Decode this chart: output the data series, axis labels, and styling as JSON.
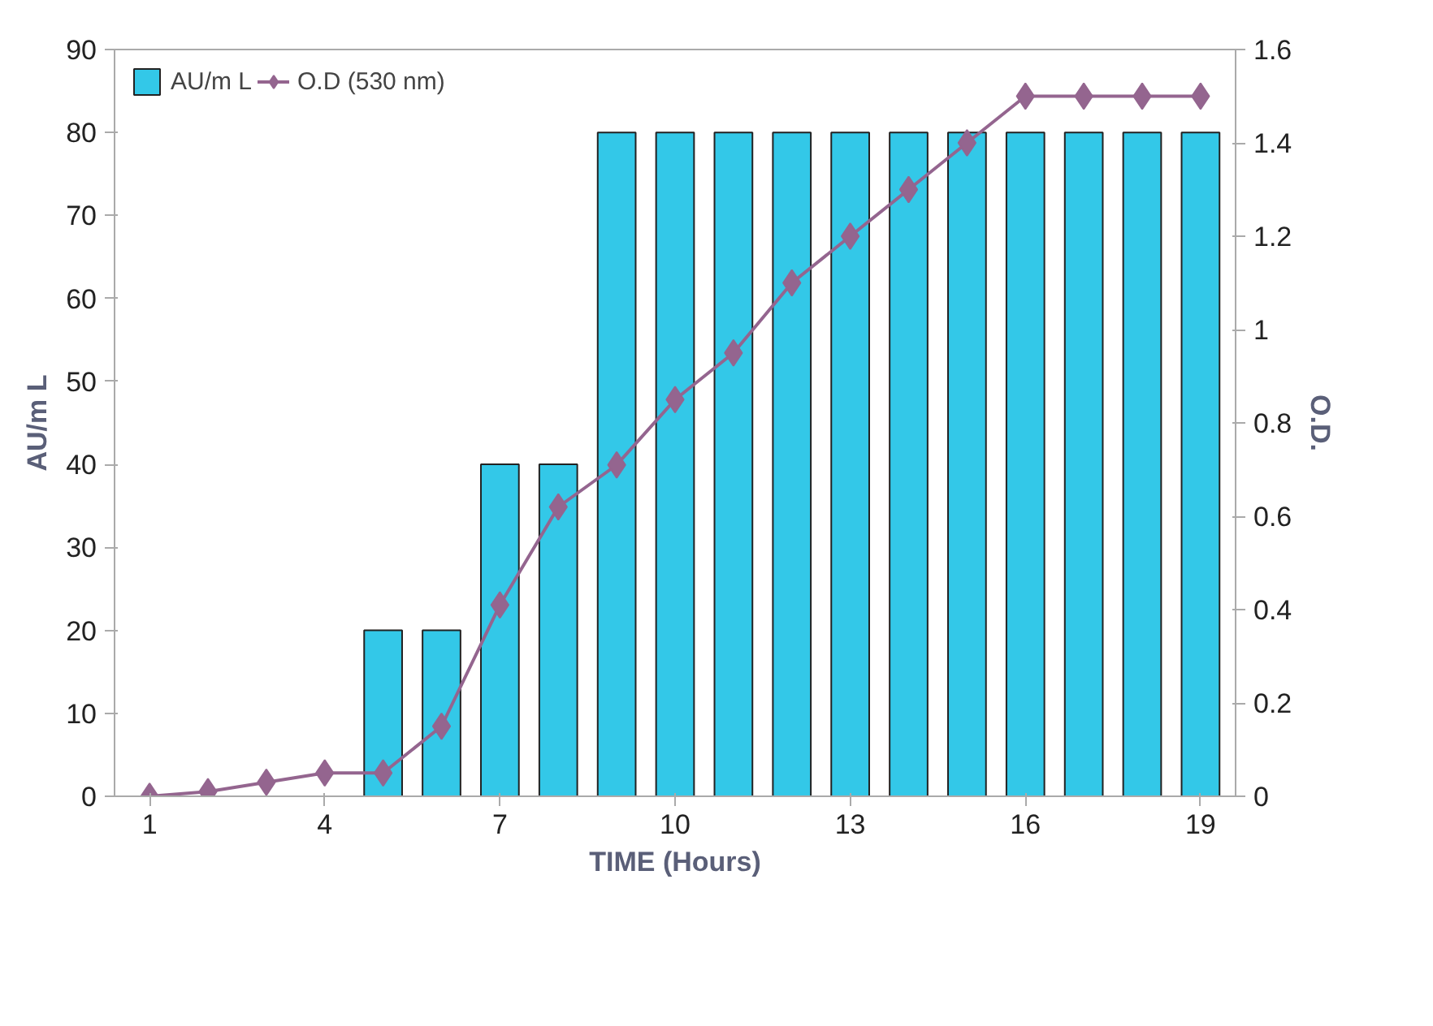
{
  "chart_data": {
    "type": "bar",
    "xlabel": "TIME (Hours)",
    "ylabel": "AU/m L",
    "y2label": "O.D.",
    "x": [
      1,
      2,
      3,
      4,
      5,
      6,
      7,
      8,
      9,
      10,
      11,
      12,
      13,
      14,
      15,
      16,
      17,
      18,
      19
    ],
    "xlim": [
      0.4,
      19.6
    ],
    "xticks": [
      1,
      4,
      7,
      10,
      13,
      16,
      19
    ],
    "ylim": [
      0,
      90
    ],
    "yticks": [
      0,
      10,
      20,
      30,
      40,
      50,
      60,
      70,
      80,
      90
    ],
    "y2lim": [
      0,
      1.6
    ],
    "y2ticks": [
      0,
      0.2,
      0.4,
      0.6,
      0.8,
      1,
      1.2,
      1.4,
      1.6
    ],
    "series": [
      {
        "name": "AU/m L",
        "color": "#33c8e8",
        "values": [
          null,
          null,
          null,
          null,
          20,
          20,
          40,
          40,
          80,
          80,
          80,
          80,
          80,
          80,
          80,
          80,
          80,
          80,
          80
        ]
      },
      {
        "name": "O.D (530 nm)",
        "type": "line",
        "axis": "y2",
        "color": "#94658f",
        "marker": "diamond",
        "values": [
          0,
          0.01,
          0.03,
          0.05,
          0.05,
          0.15,
          0.41,
          0.62,
          0.71,
          0.85,
          0.95,
          1.1,
          1.2,
          1.3,
          1.4,
          1.5,
          1.5,
          1.5,
          1.5
        ]
      }
    ],
    "grid": false,
    "legend": "top left"
  }
}
